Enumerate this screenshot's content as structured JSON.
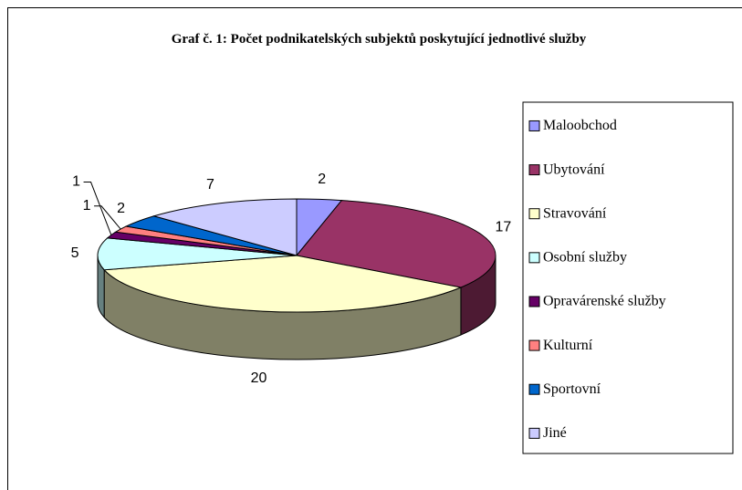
{
  "chart_data": {
    "type": "pie",
    "title": "Graf č. 1: Počet podnikatelských subjektů poskytující jednotlivé služby",
    "categories": [
      "Maloobchod",
      "Ubytování",
      "Stravování",
      "Osobní služby",
      "Opravárenské služby",
      "Kulturní",
      "Sportovní",
      "Jiné"
    ],
    "values": [
      2,
      17,
      20,
      5,
      1,
      1,
      2,
      7
    ],
    "colors": [
      "#9999ff",
      "#993366",
      "#ffffcc",
      "#ccffff",
      "#660066",
      "#ff8080",
      "#0066cc",
      "#ccccff"
    ],
    "legend": "right"
  }
}
